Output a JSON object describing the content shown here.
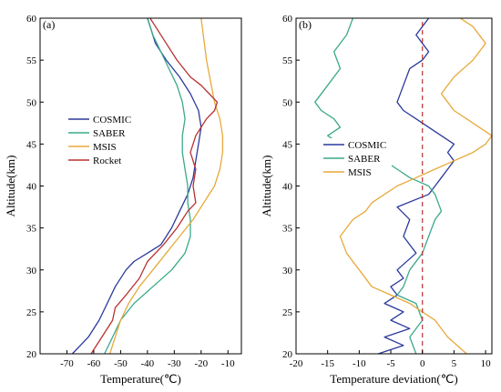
{
  "figure": {
    "panels": [
      {
        "label": "(a)",
        "xlabel": "Temperature(℃)",
        "ylabel": "Altitude(km)"
      },
      {
        "label": "(b)",
        "xlabel": "Temperature deviation(℃)",
        "ylabel": "Altitude(km)"
      }
    ]
  },
  "chart_data": [
    {
      "type": "line",
      "panel": "(a)",
      "xlabel": "Temperature(℃)",
      "ylabel": "Altitude(km)",
      "xlim": [
        -80,
        -5
      ],
      "ylim": [
        20,
        60
      ],
      "xticks": [
        -70,
        -60,
        -50,
        -40,
        -30,
        -20,
        -10
      ],
      "yticks": [
        20,
        25,
        30,
        35,
        40,
        45,
        50,
        55,
        60
      ],
      "legend_position": "middle-left",
      "series": [
        {
          "name": "COSMIC",
          "color": "#2b3a9c",
          "x": [
            -68,
            -62,
            -58,
            -55,
            -52,
            -48,
            -45,
            -40,
            -35,
            -31,
            -28,
            -25,
            -23,
            -22,
            -21,
            -20,
            -21,
            -24,
            -28,
            -33,
            -37,
            -39,
            -40
          ],
          "y": [
            20,
            22,
            24,
            26,
            28,
            30,
            31,
            32,
            33,
            35,
            37,
            39,
            41,
            43,
            45,
            47,
            49,
            51,
            53,
            55,
            57,
            59,
            60
          ]
        },
        {
          "name": "SABER",
          "color": "#3aa98a",
          "x": [
            -56,
            -53,
            -50,
            -45,
            -38,
            -31,
            -26,
            -24,
            -24,
            -25,
            -25,
            -26,
            -27,
            -27,
            -26,
            -27,
            -29,
            -32,
            -35,
            -38,
            -40
          ],
          "y": [
            20,
            22,
            24,
            26,
            28,
            30,
            32,
            34,
            36,
            38,
            40,
            42,
            44,
            46,
            48,
            50,
            52,
            54,
            56,
            58,
            60
          ]
        },
        {
          "name": "MSIS",
          "color": "#e8a93c",
          "x": [
            -54,
            -52,
            -50,
            -47,
            -43,
            -38,
            -33,
            -28,
            -23,
            -19,
            -15,
            -13,
            -12,
            -12,
            -13,
            -15,
            -18,
            -20
          ],
          "y": [
            20,
            22,
            24,
            26,
            28,
            30,
            32,
            34,
            36,
            38,
            40,
            42,
            44,
            46,
            48,
            50,
            55,
            60
          ]
        },
        {
          "name": "Rocket",
          "color": "#b8312f",
          "x": [
            -61,
            -57,
            -53,
            -52,
            -48,
            -43,
            -40,
            -34,
            -29,
            -27,
            -25,
            -22,
            -23,
            -22,
            -24,
            -22,
            -20,
            -18,
            -15,
            -14,
            -17,
            -20,
            -24,
            -29,
            -33,
            -37,
            -39
          ],
          "y": [
            20,
            22,
            24,
            25.5,
            27,
            29,
            31,
            33,
            35,
            36,
            37,
            38,
            40,
            42,
            44,
            46,
            47,
            48,
            49,
            50,
            51,
            52,
            53,
            55,
            57,
            59,
            60
          ]
        }
      ]
    },
    {
      "type": "line",
      "panel": "(b)",
      "xlabel": "Temperature deviation(℃)",
      "ylabel": "Altitude(km)",
      "xlim": [
        -20,
        11
      ],
      "ylim": [
        20,
        60
      ],
      "xticks": [
        -20,
        -15,
        -10,
        -5,
        0,
        5,
        10
      ],
      "yticks": [
        20,
        25,
        30,
        35,
        40,
        45,
        50,
        55,
        60
      ],
      "legend_position": "middle-left",
      "reference_line": {
        "x": 0,
        "color": "#b8312f",
        "style": "dashed"
      },
      "series": [
        {
          "name": "COSMIC",
          "color": "#2b3a9c",
          "x": [
            -7,
            -3,
            -6,
            -2,
            -5,
            -3,
            -6,
            -4,
            -5,
            -3,
            -4,
            -1,
            -3,
            -2,
            -4,
            1,
            2,
            3,
            4,
            5,
            4,
            5,
            3,
            1,
            -1,
            -3,
            -4,
            -3,
            -2,
            0,
            1,
            0,
            -1,
            0,
            1
          ],
          "y": [
            20,
            21,
            22,
            23,
            24,
            25,
            26,
            27,
            28,
            29,
            30,
            32,
            34,
            36,
            37.5,
            39,
            40,
            41,
            42,
            43,
            44,
            45,
            46,
            47,
            48,
            49,
            50,
            52,
            54,
            55,
            56,
            57,
            58,
            59,
            60
          ]
        },
        {
          "name": "SABER",
          "color": "#3aa98a",
          "x": [
            -1,
            -2,
            0,
            -1,
            -4,
            -3,
            -2,
            0,
            1,
            2,
            3,
            2,
            1,
            -2,
            -4,
            -6,
            -10,
            -13,
            -15,
            -13,
            -14,
            -16,
            -17,
            -15,
            -13,
            -14,
            -12,
            -11
          ],
          "y": [
            20,
            22,
            24,
            26,
            27,
            28,
            30,
            32,
            34,
            36,
            37,
            39,
            40,
            41,
            42,
            43,
            44,
            45,
            46,
            47,
            48,
            49,
            50,
            52,
            54,
            56,
            58,
            60
          ]
        },
        {
          "name": "MSIS",
          "color": "#e8a93c",
          "x": [
            7,
            4,
            2,
            0,
            -2,
            -5,
            -8,
            -10,
            -12,
            -13,
            -11,
            -9,
            -8,
            -6,
            -4,
            -1,
            2,
            5,
            8,
            10,
            11,
            9,
            7,
            5,
            4,
            3,
            5,
            8,
            10,
            8,
            6
          ],
          "y": [
            20,
            22,
            24,
            25,
            26,
            27,
            28,
            30,
            32,
            34,
            36,
            37,
            38,
            39,
            40,
            41,
            42,
            43,
            44,
            45,
            46,
            47,
            48,
            49,
            50,
            51,
            53,
            55,
            57,
            59,
            60
          ]
        }
      ]
    }
  ]
}
